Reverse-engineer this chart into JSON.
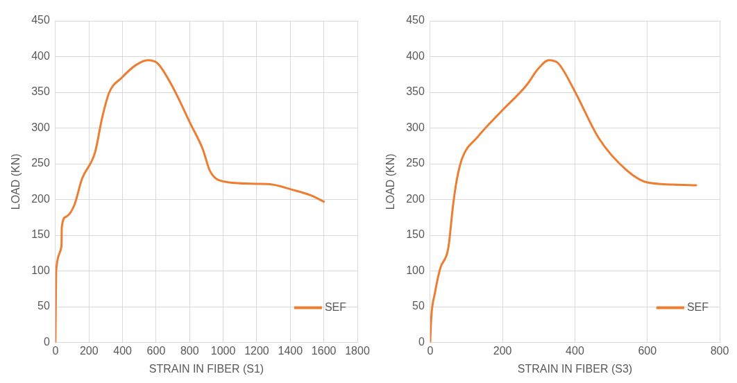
{
  "chart_data": [
    {
      "type": "line",
      "xlabel": "STRAIN IN FIBER (S1)",
      "ylabel": "LOAD (KN)",
      "xlim": [
        0,
        1800
      ],
      "xticks": [
        0,
        200,
        400,
        600,
        800,
        1000,
        1200,
        1400,
        1600,
        1800
      ],
      "ylim": [
        0,
        450
      ],
      "yticks": [
        0,
        50,
        100,
        150,
        200,
        250,
        300,
        350,
        400,
        450
      ],
      "grid": true,
      "legend": "bottom right",
      "marker": "none",
      "series": [
        {
          "name": "SEF",
          "color": "#ed7d31",
          "x": [
            0,
            4,
            36,
            38,
            64,
            114,
            157,
            236,
            279,
            321,
            393,
            479,
            550,
            607,
            693,
            807,
            879,
            921,
            1007,
            1193,
            1293,
            1407,
            1521,
            1600
          ],
          "values": [
            0,
            100,
            135,
            162,
            176,
            193,
            228,
            266,
            315,
            350,
            370,
            388,
            395,
            391,
            360,
            305,
            270,
            240,
            225,
            222,
            221,
            214,
            206,
            197
          ]
        }
      ]
    },
    {
      "type": "line",
      "xlabel": "STRAIN IN FIBER (S3)",
      "ylabel": "LOAD (KN)",
      "xlim": [
        0,
        800
      ],
      "xticks": [
        0,
        200,
        400,
        600,
        800
      ],
      "ylim": [
        0,
        450
      ],
      "yticks": [
        0,
        50,
        100,
        150,
        200,
        250,
        300,
        350,
        400,
        450
      ],
      "grid": true,
      "legend": "bottom right",
      "marker": "none",
      "series": [
        {
          "name": "SEF",
          "color": "#ed7d31",
          "x": [
            0,
            3,
            13,
            28,
            50,
            63,
            73,
            88,
            132,
            196,
            268,
            297,
            328,
            353,
            397,
            467,
            543,
            599,
            669,
            735
          ],
          "values": [
            0,
            35,
            69,
            104,
            132,
            191,
            226,
            257,
            288,
            323,
            361,
            382,
            395,
            391,
            354,
            285,
            241,
            224,
            221,
            220
          ]
        }
      ]
    }
  ]
}
